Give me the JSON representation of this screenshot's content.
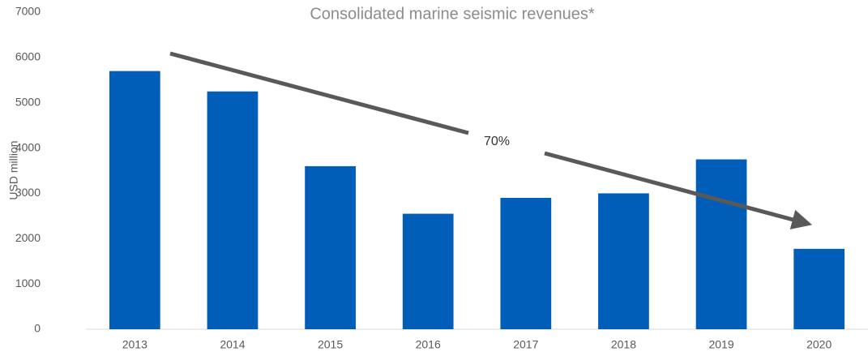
{
  "chart_data": {
    "type": "bar",
    "title": "Consolidated marine seismic revenues*",
    "y_label": "USD million",
    "annotation": "70%",
    "categories": [
      "2013",
      "2014",
      "2015",
      "2016",
      "2017",
      "2018",
      "2019",
      "2020"
    ],
    "values": [
      5700,
      5250,
      3600,
      2550,
      2900,
      3000,
      3750,
      1775
    ],
    "color": "#005eb8",
    "ylim": [
      0,
      7000
    ],
    "yticks": [
      0,
      1000,
      2000,
      3000,
      4000,
      5000,
      6000,
      7000
    ],
    "grid": false
  }
}
